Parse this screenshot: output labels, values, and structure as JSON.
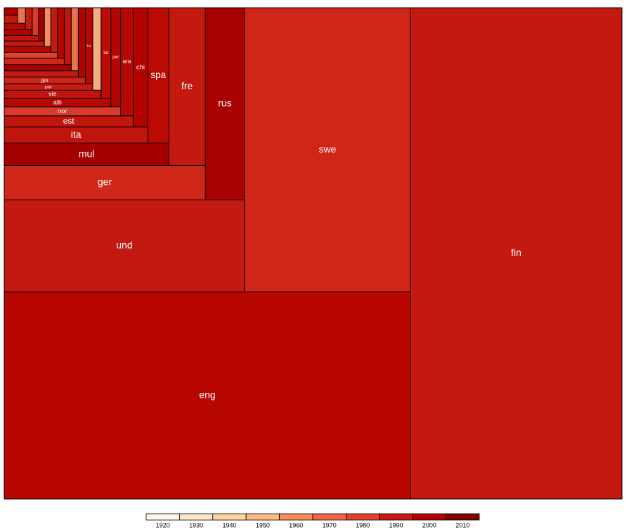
{
  "chart_data": {
    "type": "treemap",
    "categories": [
      "fin",
      "eng",
      "swe",
      "und",
      "rus",
      "ger",
      "fre",
      "mul",
      "spa",
      "ita",
      "chi",
      "est",
      "ara",
      "nor",
      "per",
      "alb",
      "lat",
      "vie",
      null,
      "por",
      "tur",
      "jpn",
      null,
      null,
      null,
      null,
      null,
      null,
      null,
      null,
      null,
      null,
      null,
      null,
      null,
      null,
      null,
      null,
      null,
      null,
      null,
      null,
      null
    ],
    "values": [
      210700,
      170510,
      95580,
      44802,
      15288,
      14014,
      11648,
      7488,
      5760,
      4692,
      3549,
      2912,
      2754,
      2132,
      1960,
      1800,
      1792,
      1632,
      1392,
      1150,
      1140,
      1100,
      1000,
      950,
      900,
      850,
      800,
      750,
      700,
      650,
      600,
      550,
      500,
      450,
      400,
      380,
      350,
      320,
      300,
      280,
      250,
      220,
      200
    ],
    "colors": [
      "#c4190f",
      "#b70700",
      "#d0261a",
      "#c21a12",
      "#a90000",
      "#d0271b",
      "#c4190f",
      "#a50000",
      "#bb0a03",
      "#c0140c",
      "#b30300",
      "#c0160e",
      "#b80805",
      "#d93a2a",
      "#b50500",
      "#b80804",
      "#bc0c05",
      "#c0140c",
      "#f4ad80",
      "#c51a12",
      "#b70500",
      "#cb2419",
      "#b30300",
      "#c51a12",
      "#e8744f",
      "#a90000",
      "#c0140c",
      "#d0261a",
      "#b50500",
      "#e0402c",
      "#c4190f",
      "#b70700",
      "#f09060",
      "#c21a12",
      "#a50000",
      "#c0140c",
      "#d93a2a",
      "#b30300",
      "#c51a12",
      "#b70700",
      "#e8744f",
      "#c4190f",
      "#a90000"
    ],
    "legend": {
      "ticks": [
        1920,
        1930,
        1940,
        1950,
        1960,
        1970,
        1980,
        1990,
        2000,
        2010
      ],
      "colors": [
        "#fff7ec",
        "#fee8c8",
        "#fdd49e",
        "#fdbb84",
        "#fc8d59",
        "#ef6548",
        "#e0402c",
        "#c8180f",
        "#b30000",
        "#7f0000"
      ]
    }
  }
}
